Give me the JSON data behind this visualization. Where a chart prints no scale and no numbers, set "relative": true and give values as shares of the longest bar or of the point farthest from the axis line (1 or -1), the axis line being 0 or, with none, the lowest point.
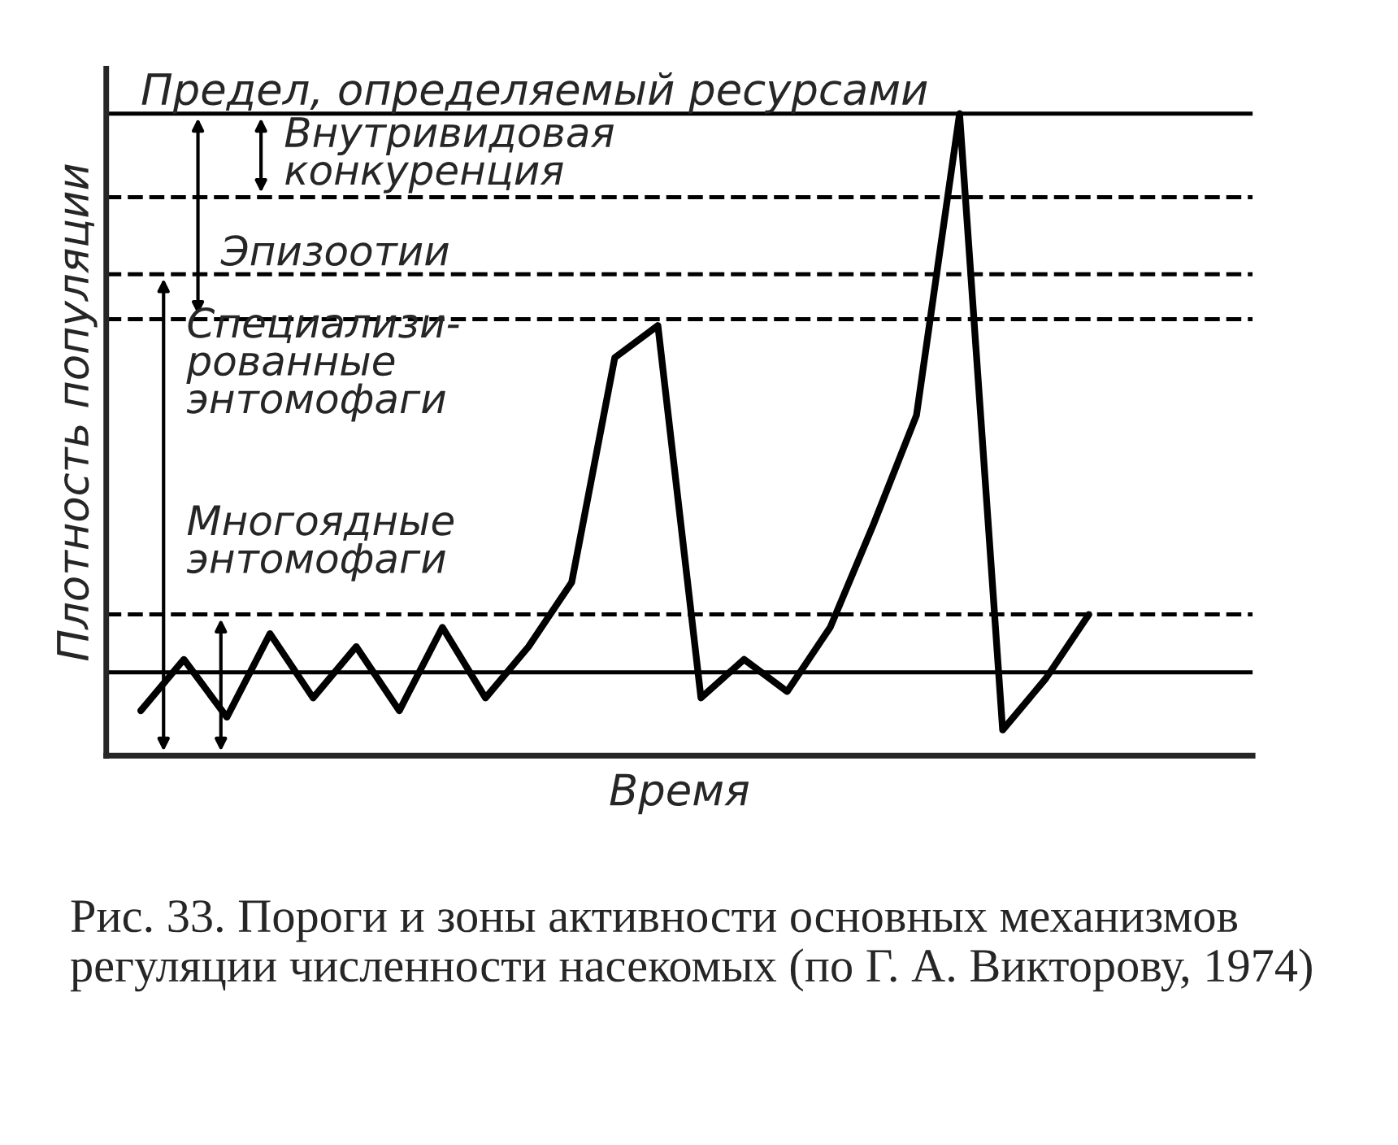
{
  "chart_data": {
    "type": "line",
    "relative": true,
    "xlabel": "Время",
    "ylabel": "Плотность популяции",
    "categories": [
      null,
      null,
      null,
      null,
      null,
      null,
      null,
      null,
      null,
      null,
      null,
      null,
      null,
      null,
      null,
      null,
      null,
      null,
      null,
      null,
      null,
      null,
      null
    ],
    "series": [
      {
        "color": "#000000",
        "values": [
          0.07,
          0.15,
          0.06,
          0.19,
          0.09,
          0.17,
          0.07,
          0.2,
          0.09,
          0.17,
          0.27,
          0.62,
          0.67,
          0.09,
          0.15,
          0.1,
          0.2,
          0.36,
          0.53,
          1.0,
          0.04,
          0.12,
          0.22
        ]
      }
    ],
    "ref_lines": [
      {
        "axis": "y",
        "value": 1.0,
        "label": "Предел, определяемый ресурсами",
        "color": "#000000",
        "line_style": "solid"
      },
      {
        "axis": "y",
        "value": 0.87,
        "color": "#000000",
        "line_style": "dashed"
      },
      {
        "axis": "y",
        "value": 0.75,
        "color": "#000000",
        "line_style": "dashed"
      },
      {
        "axis": "y",
        "value": 0.68,
        "color": "#000000",
        "line_style": "dashed"
      },
      {
        "axis": "y",
        "value": 0.22,
        "color": "#000000",
        "line_style": "dashed"
      },
      {
        "axis": "y",
        "value": 0.13,
        "color": "#000000",
        "line_style": "solid"
      }
    ],
    "annotations": [
      "Внутривидовая\nконкуренция",
      "Эпизоотии",
      "Специализи-\nрованные\nэнтомофаги",
      "Многоядные\nэнтомофаги",
      "Рис. 33. Пороги и зоны активности основных механизмов регуляции численности насекомых (по Г. А. Викторову, 1974)"
    ],
    "grid": false,
    "marker": "none",
    "line_style": "solid"
  }
}
